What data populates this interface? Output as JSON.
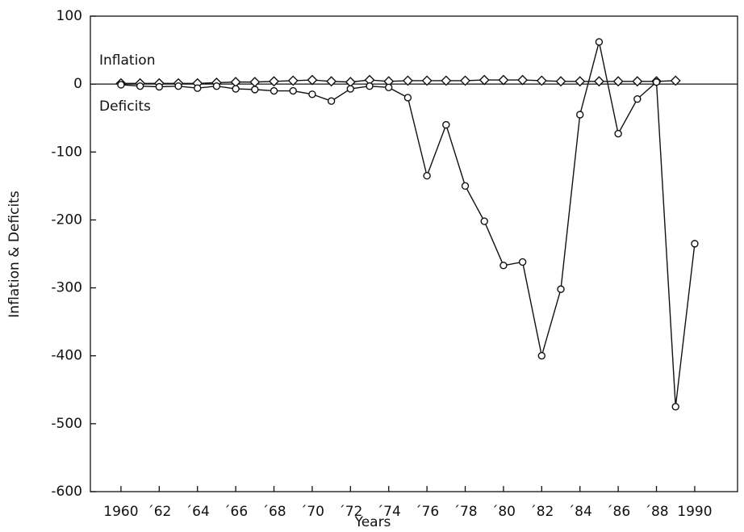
{
  "chart_data": {
    "type": "line",
    "xlabel": "Years",
    "ylabel": "Inflation & Deficits",
    "x": [
      1960,
      1961,
      1962,
      1963,
      1964,
      1965,
      1966,
      1967,
      1968,
      1969,
      1970,
      1971,
      1972,
      1973,
      1974,
      1975,
      1976,
      1977,
      1978,
      1979,
      1980,
      1981,
      1982,
      1983,
      1984,
      1985,
      1986,
      1987,
      1988,
      1989,
      1990
    ],
    "series": [
      {
        "name": "Inflation",
        "color": "#111111",
        "marker": "diamond",
        "values": [
          1,
          1,
          1,
          1,
          1,
          2,
          3,
          3,
          4,
          5,
          6,
          4,
          3,
          6,
          4,
          5,
          5,
          5,
          5,
          6,
          6,
          6,
          5,
          4,
          4,
          4,
          4,
          4,
          4,
          5,
          null
        ]
      },
      {
        "name": "Deficits",
        "color": "#111111",
        "marker": "circle",
        "values": [
          -1,
          -3,
          -4,
          -3,
          -6,
          -3,
          -7,
          -8,
          -10,
          -10,
          -15,
          -25,
          -7,
          -3,
          -5,
          -20,
          -135,
          -60,
          -150,
          -202,
          -267,
          -262,
          -400,
          -302,
          -45,
          62,
          -73,
          -22,
          3,
          -475,
          -235
        ]
      }
    ],
    "xlim": [
      1958.4,
      1992.24
    ],
    "xticks": [
      {
        "value": 1960,
        "label": "1960"
      },
      {
        "value": 1962,
        "label": "´62"
      },
      {
        "value": 1964,
        "label": "´64"
      },
      {
        "value": 1966,
        "label": "´66"
      },
      {
        "value": 1968,
        "label": "´68"
      },
      {
        "value": 1970,
        "label": "´70"
      },
      {
        "value": 1972,
        "label": "´72"
      },
      {
        "value": 1974,
        "label": "´74"
      },
      {
        "value": 1976,
        "label": "´76"
      },
      {
        "value": 1978,
        "label": "´78"
      },
      {
        "value": 1980,
        "label": "´80"
      },
      {
        "value": 1982,
        "label": "´82"
      },
      {
        "value": 1984,
        "label": "´84"
      },
      {
        "value": 1986,
        "label": "´86"
      },
      {
        "value": 1988,
        "label": "´88"
      },
      {
        "value": 1990,
        "label": "1990"
      }
    ],
    "ylim": [
      -600,
      100
    ],
    "yticks": [
      100,
      0,
      -100,
      -200,
      -300,
      -400,
      -500,
      -600
    ],
    "grid": false
  }
}
